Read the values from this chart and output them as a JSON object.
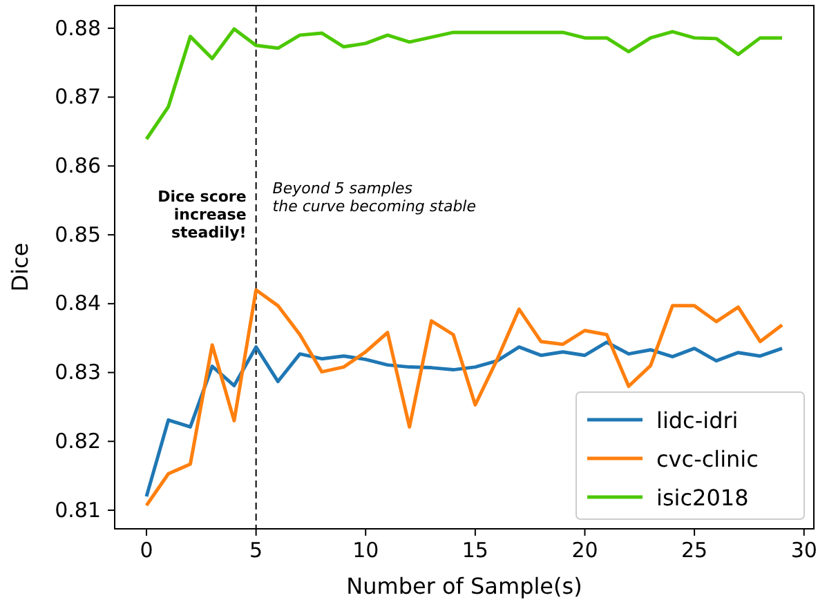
{
  "chart_data": {
    "type": "line",
    "xlabel": "Number of Sample(s)",
    "ylabel": "Dice",
    "x": [
      0,
      1,
      2,
      3,
      4,
      5,
      6,
      7,
      8,
      9,
      10,
      11,
      12,
      13,
      14,
      15,
      16,
      17,
      18,
      19,
      20,
      21,
      22,
      23,
      24,
      25,
      26,
      27,
      28,
      29
    ],
    "series": [
      {
        "name": "lidc-idri",
        "color": "#1f77b4",
        "values": [
          0.812,
          0.8231,
          0.8221,
          0.8309,
          0.8281,
          0.8337,
          0.8287,
          0.8327,
          0.832,
          0.8324,
          0.8319,
          0.8311,
          0.8308,
          0.8307,
          0.8304,
          0.8308,
          0.8317,
          0.8337,
          0.8325,
          0.833,
          0.8325,
          0.8344,
          0.8327,
          0.8333,
          0.8323,
          0.8335,
          0.8317,
          0.8329,
          0.8324,
          0.8335
        ]
      },
      {
        "name": "cvc-clinic",
        "color": "#ff7f0e",
        "values": [
          0.8107,
          0.8153,
          0.8167,
          0.834,
          0.823,
          0.842,
          0.8397,
          0.8355,
          0.8301,
          0.8308,
          0.833,
          0.8358,
          0.8221,
          0.8375,
          0.8355,
          0.8253,
          0.8319,
          0.8392,
          0.8345,
          0.8341,
          0.8361,
          0.8355,
          0.828,
          0.831,
          0.8397,
          0.8397,
          0.8374,
          0.8395,
          0.8345,
          0.8369
        ]
      },
      {
        "name": "isic2018",
        "color": "#4cc800",
        "values": [
          0.8639,
          0.8686,
          0.8788,
          0.8756,
          0.8799,
          0.8775,
          0.8771,
          0.879,
          0.8793,
          0.8773,
          0.8778,
          0.879,
          0.878,
          0.8787,
          0.8794,
          0.8794,
          0.8794,
          0.8794,
          0.8794,
          0.8794,
          0.8786,
          0.8786,
          0.8766,
          0.8786,
          0.8795,
          0.8786,
          0.8785,
          0.8762,
          0.8786,
          0.8786
        ]
      }
    ],
    "xlim": [
      -1.45,
      30.45
    ],
    "ylim": [
      0.8073,
      0.8833
    ],
    "xticks": [
      0,
      5,
      10,
      15,
      20,
      25,
      30
    ],
    "yticks": [
      {
        "value": 0.81,
        "label": "0.81"
      },
      {
        "value": 0.82,
        "label": "0.82"
      },
      {
        "value": 0.83,
        "label": "0.83"
      },
      {
        "value": 0.84,
        "label": "0.84"
      },
      {
        "value": 0.85,
        "label": "0.85"
      },
      {
        "value": 0.86,
        "label": "0.86"
      },
      {
        "value": 0.87,
        "label": "0.87"
      },
      {
        "value": 0.88,
        "label": "0.88"
      }
    ],
    "ref_lines": [
      {
        "axis": "x",
        "value": 5,
        "color": "#000000",
        "line_style": "dashed"
      }
    ],
    "annotations": [
      "Dice score\nincrease\nsteadily!",
      "Beyond 5 samples\nthe curve becoming stable"
    ],
    "legend": "bottom right",
    "grid": false,
    "marker": "none",
    "line_style": "solid"
  }
}
